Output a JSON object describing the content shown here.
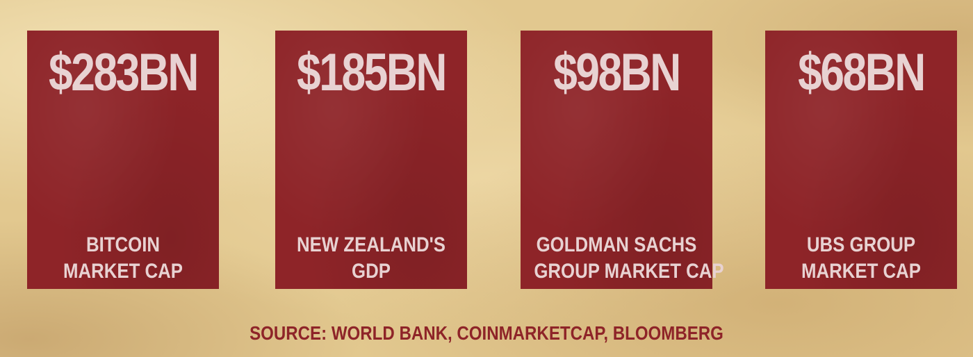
{
  "cards": [
    {
      "value": "$283BN",
      "label_lines": [
        "BITCOIN",
        "MARKET CAP"
      ]
    },
    {
      "value": "$185BN",
      "label_lines": [
        "NEW ZEALAND'S",
        "GDP"
      ]
    },
    {
      "value": "$98BN",
      "label_lines": [
        "GOLDMAN SACHS",
        "GROUP MARKET CAP"
      ]
    },
    {
      "value": "$68BN",
      "label_lines": [
        "UBS GROUP",
        "MARKET CAP"
      ]
    }
  ],
  "source": "SOURCE: WORLD BANK, COINMARKETCAP, BLOOMBERG",
  "colors": {
    "background": "#e2c88f",
    "card": "#8e2428",
    "card_text": "#e8d2d2",
    "source_text": "#8e2428"
  }
}
